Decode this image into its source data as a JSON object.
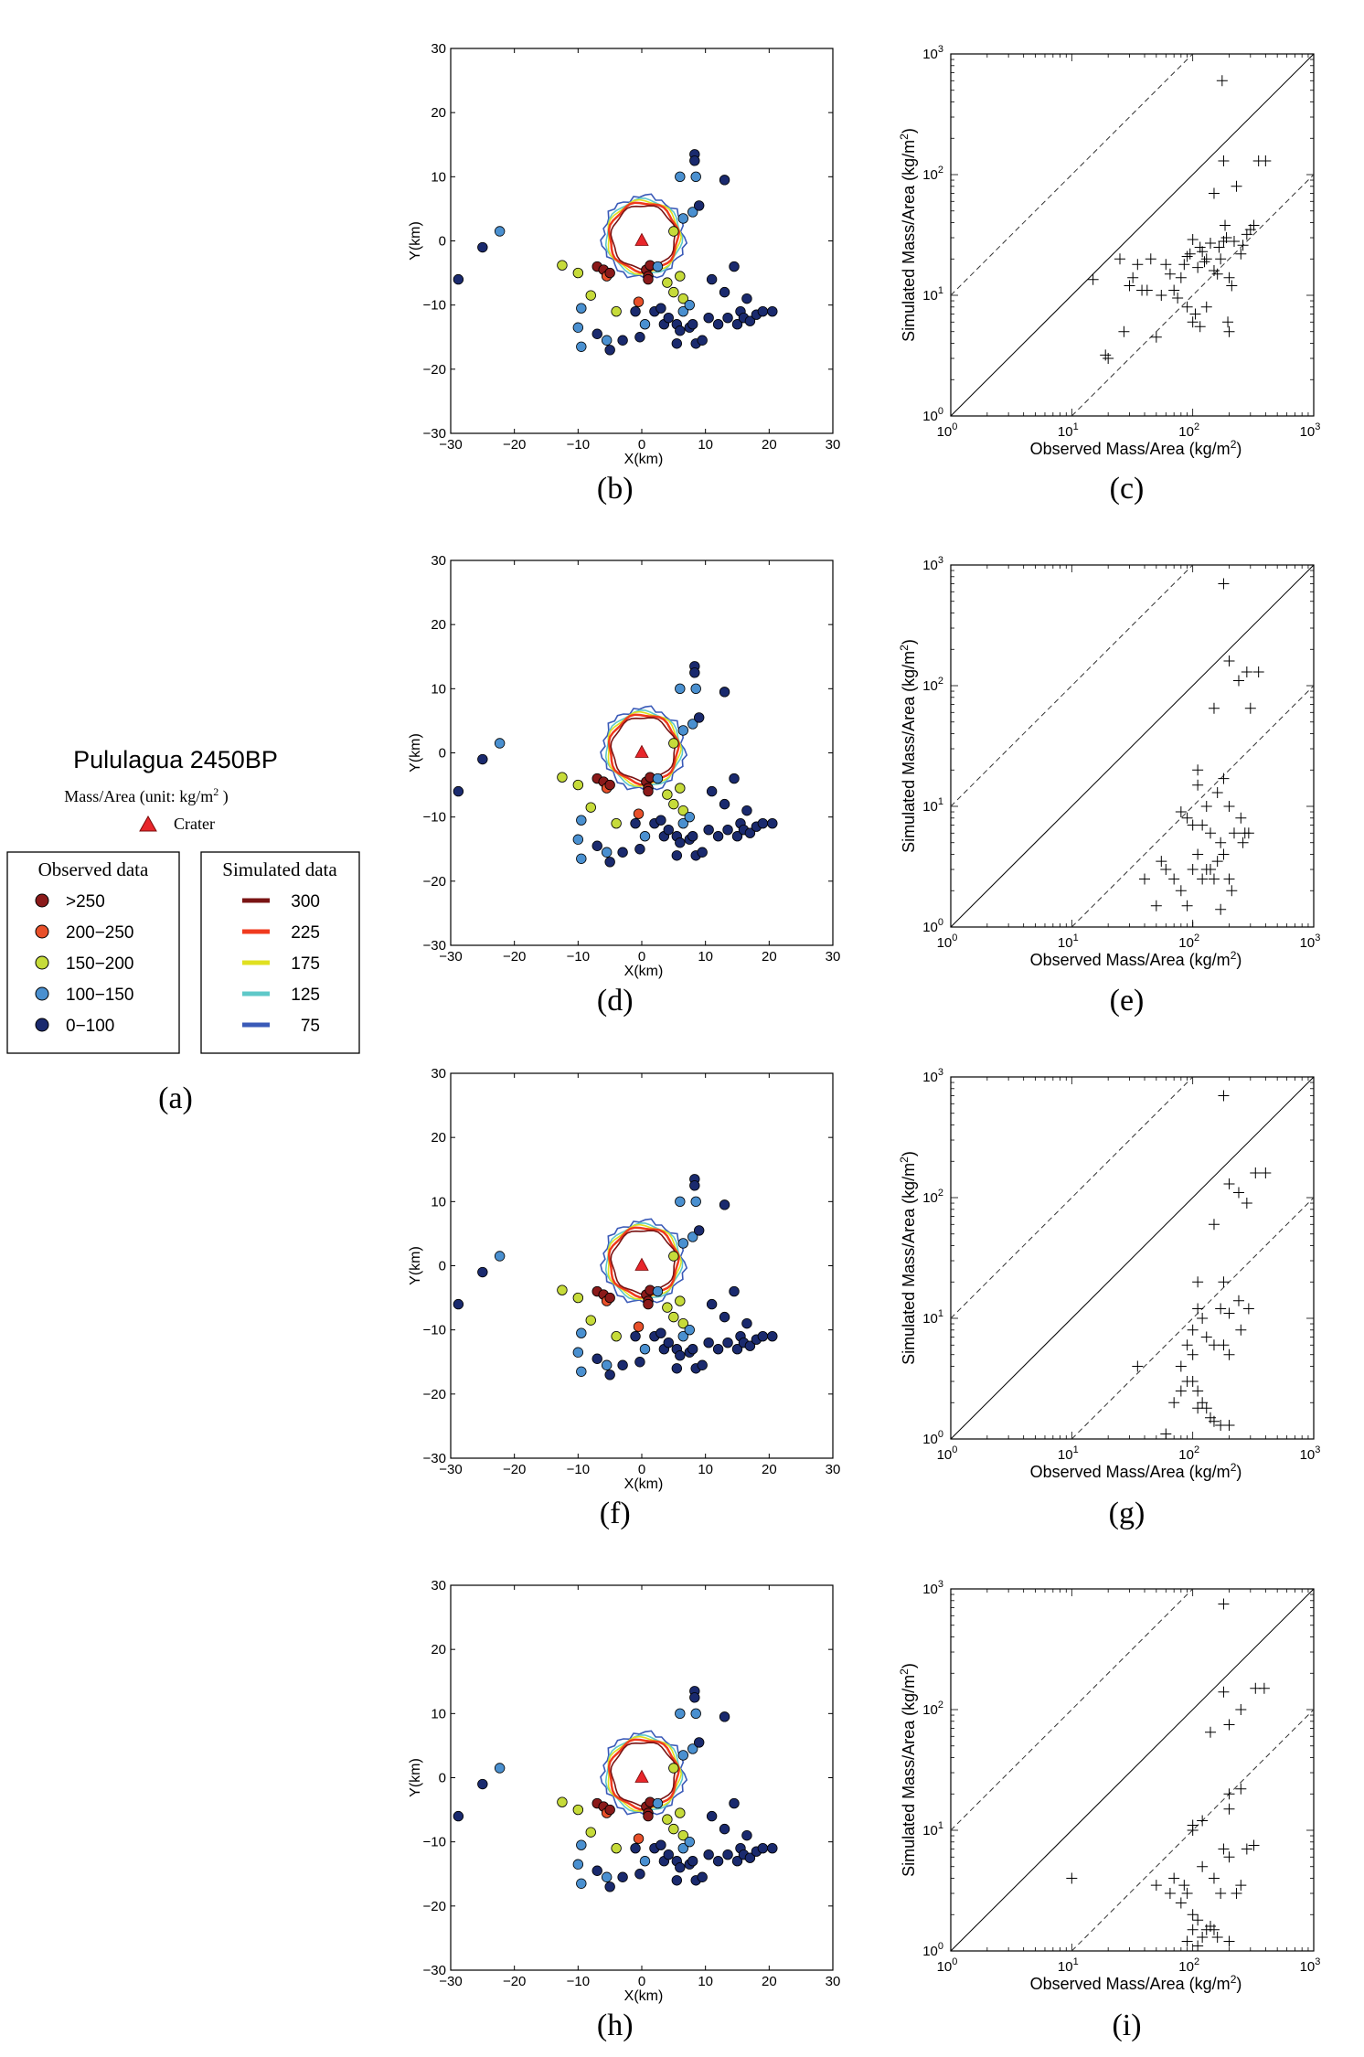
{
  "legend": {
    "title": "Pululagua 2450BP",
    "subtitle": "Mass/Area (unit: kg/m",
    "subtitle_sup": "2",
    "subtitle_end": " )",
    "crater_label": "Crater",
    "crater_color": "#e8262b",
    "observed": {
      "title": "Observed data",
      "items": [
        {
          "label": ">250",
          "color": "#8b1a1a"
        },
        {
          "label": "200−250",
          "color": "#e8502a"
        },
        {
          "label": "150−200",
          "color": "#c6db3a"
        },
        {
          "label": "100−150",
          "color": "#4a90d0"
        },
        {
          "label": "0−100",
          "color": "#1a2a6e"
        }
      ]
    },
    "simulated": {
      "title": "Simulated data",
      "items": [
        {
          "label": "300",
          "color": "#7a1414"
        },
        {
          "label": "225",
          "color": "#f03a1e"
        },
        {
          "label": "175",
          "color": "#e0e020"
        },
        {
          "label": "125",
          "color": "#5ec8c8"
        },
        {
          "label": "75",
          "color": "#3a5ab8"
        }
      ]
    },
    "panel_label": "(a)"
  },
  "chart_data": [
    {
      "type": "scatter",
      "kind": "map",
      "xlabel": "X(km)",
      "ylabel": "Y(km)",
      "xlim": [
        -30,
        30
      ],
      "ylim": [
        -30,
        30
      ],
      "xticks": [
        "−30",
        "−20",
        "−10",
        "0",
        "10",
        "20",
        "30"
      ],
      "yticks": [
        "−30",
        "−20",
        "−10",
        "0",
        "10",
        "20",
        "30"
      ],
      "crater": [
        0,
        0
      ],
      "contour_radius_km": {
        "300": 5.0,
        "225": 5.4,
        "175": 5.7,
        "125": 5.9,
        "75": 6.4
      },
      "panels": [
        "(b)",
        "(d)",
        "(f)",
        "(h)"
      ],
      "points": [
        {
          "x": -28.8,
          "y": -6,
          "c": "0-100"
        },
        {
          "x": -25,
          "y": -1,
          "c": "0-100"
        },
        {
          "x": -22.3,
          "y": 1.5,
          "c": "100-150"
        },
        {
          "x": -12.5,
          "y": -3.8,
          "c": "150-200"
        },
        {
          "x": -10,
          "y": -5,
          "c": "150-200"
        },
        {
          "x": -9.5,
          "y": -10.5,
          "c": "100-150"
        },
        {
          "x": -8,
          "y": -8.5,
          "c": "150-200"
        },
        {
          "x": -7,
          "y": -4,
          "c": ">250"
        },
        {
          "x": -6,
          "y": -4.5,
          "c": ">250"
        },
        {
          "x": -5.5,
          "y": -5.5,
          "c": "200-250"
        },
        {
          "x": -5,
          "y": -5,
          "c": ">250"
        },
        {
          "x": -10,
          "y": -13.5,
          "c": "100-150"
        },
        {
          "x": -7,
          "y": -14.5,
          "c": "0-100"
        },
        {
          "x": -9.5,
          "y": -16.5,
          "c": "100-150"
        },
        {
          "x": -5.5,
          "y": -15.5,
          "c": "100-150"
        },
        {
          "x": -5,
          "y": -17,
          "c": "0-100"
        },
        {
          "x": -4,
          "y": -11,
          "c": "150-200"
        },
        {
          "x": -3,
          "y": -15.5,
          "c": "0-100"
        },
        {
          "x": -1,
          "y": -11,
          "c": "0-100"
        },
        {
          "x": -0.5,
          "y": -9.5,
          "c": "200-250"
        },
        {
          "x": -0.3,
          "y": -15,
          "c": "0-100"
        },
        {
          "x": 0.5,
          "y": -13,
          "c": "100-150"
        },
        {
          "x": 0.7,
          "y": -4.5,
          "c": ">250"
        },
        {
          "x": 1,
          "y": -5.5,
          "c": ">250"
        },
        {
          "x": 1,
          "y": -6,
          "c": ">250"
        },
        {
          "x": 1.3,
          "y": -3.8,
          "c": ">250"
        },
        {
          "x": 2,
          "y": -11,
          "c": "0-100"
        },
        {
          "x": 2.5,
          "y": -4,
          "c": "100-150"
        },
        {
          "x": 3,
          "y": -10.5,
          "c": "0-100"
        },
        {
          "x": 3.5,
          "y": -13,
          "c": "0-100"
        },
        {
          "x": 4,
          "y": -6.5,
          "c": "150-200"
        },
        {
          "x": 4.2,
          "y": -12,
          "c": "0-100"
        },
        {
          "x": 5,
          "y": -8,
          "c": "150-200"
        },
        {
          "x": 5,
          "y": 1.5,
          "c": "150-200"
        },
        {
          "x": 5.5,
          "y": -13,
          "c": "0-100"
        },
        {
          "x": 5.5,
          "y": -16,
          "c": "0-100"
        },
        {
          "x": 6,
          "y": -5.5,
          "c": "150-200"
        },
        {
          "x": 6.5,
          "y": -9,
          "c": "150-200"
        },
        {
          "x": 6.5,
          "y": -11,
          "c": "100-150"
        },
        {
          "x": 6,
          "y": -14,
          "c": "0-100"
        },
        {
          "x": 7.5,
          "y": -10,
          "c": "100-150"
        },
        {
          "x": 7.5,
          "y": -13.5,
          "c": "0-100"
        },
        {
          "x": 6,
          "y": 10,
          "c": "100-150"
        },
        {
          "x": 6.5,
          "y": 3.5,
          "c": "100-150"
        },
        {
          "x": 8,
          "y": -13,
          "c": "0-100"
        },
        {
          "x": 8.3,
          "y": 13.5,
          "c": "0-100"
        },
        {
          "x": 8.3,
          "y": 12.5,
          "c": "0-100"
        },
        {
          "x": 8.5,
          "y": 10,
          "c": "100-150"
        },
        {
          "x": 8.5,
          "y": -16,
          "c": "0-100"
        },
        {
          "x": 8,
          "y": 4.5,
          "c": "100-150"
        },
        {
          "x": 9,
          "y": 5.5,
          "c": "0-100"
        },
        {
          "x": 9.5,
          "y": -15.5,
          "c": "0-100"
        },
        {
          "x": 10.5,
          "y": -12,
          "c": "0-100"
        },
        {
          "x": 11,
          "y": -6,
          "c": "0-100"
        },
        {
          "x": 12,
          "y": -13,
          "c": "0-100"
        },
        {
          "x": 13,
          "y": 9.5,
          "c": "0-100"
        },
        {
          "x": 13,
          "y": -8,
          "c": "0-100"
        },
        {
          "x": 13.5,
          "y": -12,
          "c": "0-100"
        },
        {
          "x": 14.5,
          "y": -4,
          "c": "0-100"
        },
        {
          "x": 15,
          "y": -13,
          "c": "0-100"
        },
        {
          "x": 15.5,
          "y": -11,
          "c": "0-100"
        },
        {
          "x": 16,
          "y": -12,
          "c": "0-100"
        },
        {
          "x": 16.5,
          "y": -9,
          "c": "0-100"
        },
        {
          "x": 17,
          "y": -12.5,
          "c": "0-100"
        },
        {
          "x": 18,
          "y": -11.5,
          "c": "0-100"
        },
        {
          "x": 19,
          "y": -11,
          "c": "0-100"
        },
        {
          "x": 20.5,
          "y": -11,
          "c": "0-100"
        }
      ]
    },
    {
      "type": "scatter",
      "kind": "loglog",
      "xlabel": "Observed Mass/Area (kg/m",
      "ylabel": "Simulated Mass/Area (kg/m",
      "label_sup": "2",
      "label_end": ")",
      "xscale": "log",
      "yscale": "log",
      "xlim": [
        1,
        1000
      ],
      "ylim": [
        1,
        1000
      ],
      "reference_lines": [
        "y=x",
        "y=10x",
        "y=x/10"
      ],
      "panels": [
        {
          "label": "(c)",
          "points": [
            [
              15,
              13.5
            ],
            [
              19,
              3.2
            ],
            [
              20,
              3
            ],
            [
              25,
              20
            ],
            [
              27,
              5
            ],
            [
              30,
              12
            ],
            [
              32,
              14
            ],
            [
              35,
              18
            ],
            [
              38,
              11
            ],
            [
              42,
              11
            ],
            [
              45,
              20
            ],
            [
              50,
              4.5
            ],
            [
              55,
              10
            ],
            [
              60,
              18
            ],
            [
              65,
              15
            ],
            [
              70,
              11
            ],
            [
              75,
              9.5
            ],
            [
              80,
              14
            ],
            [
              85,
              18
            ],
            [
              90,
              21
            ],
            [
              95,
              22
            ],
            [
              100,
              29
            ],
            [
              105,
              7
            ],
            [
              110,
              17
            ],
            [
              115,
              25
            ],
            [
              120,
              23
            ],
            [
              125,
              19
            ],
            [
              130,
              20
            ],
            [
              140,
              27
            ],
            [
              150,
              16
            ],
            [
              160,
              15
            ],
            [
              165,
              25
            ],
            [
              170,
              20
            ],
            [
              180,
              28
            ],
            [
              185,
              38
            ],
            [
              190,
              30
            ],
            [
              200,
              14
            ],
            [
              210,
              12
            ],
            [
              220,
              28
            ],
            [
              230,
              80
            ],
            [
              250,
              22
            ],
            [
              260,
              26
            ],
            [
              280,
              32
            ],
            [
              300,
              35
            ],
            [
              320,
              38
            ],
            [
              350,
              130
            ],
            [
              400,
              130
            ],
            [
              175,
              600
            ],
            [
              180,
              130
            ],
            [
              150,
              70
            ],
            [
              200,
              5
            ],
            [
              195,
              6
            ],
            [
              115,
              5.5
            ],
            [
              130,
              8
            ],
            [
              100,
              6
            ],
            [
              90,
              8
            ]
          ]
        },
        {
          "label": "(e)",
          "points": [
            [
              180,
              700
            ],
            [
              200,
              160
            ],
            [
              280,
              130
            ],
            [
              350,
              130
            ],
            [
              150,
              65
            ],
            [
              240,
              110
            ],
            [
              300,
              65
            ],
            [
              110,
              20
            ],
            [
              110,
              15
            ],
            [
              130,
              10
            ],
            [
              80,
              9
            ],
            [
              90,
              8
            ],
            [
              100,
              7
            ],
            [
              120,
              7
            ],
            [
              140,
              6
            ],
            [
              170,
              5
            ],
            [
              160,
              13
            ],
            [
              180,
              17
            ],
            [
              200,
              10
            ],
            [
              220,
              6
            ],
            [
              250,
              8
            ],
            [
              260,
              5
            ],
            [
              270,
              6
            ],
            [
              290,
              6
            ],
            [
              110,
              4
            ],
            [
              130,
              3
            ],
            [
              140,
              3
            ],
            [
              150,
              2.5
            ],
            [
              160,
              3.5
            ],
            [
              180,
              4
            ],
            [
              200,
              2.5
            ],
            [
              210,
              2
            ],
            [
              60,
              3
            ],
            [
              70,
              2.5
            ],
            [
              80,
              2
            ],
            [
              90,
              1.5
            ],
            [
              100,
              3
            ],
            [
              120,
              2.5
            ],
            [
              55,
              3.5
            ],
            [
              40,
              2.5
            ],
            [
              50,
              1.5
            ],
            [
              100,
              1
            ],
            [
              170,
              1.4
            ]
          ]
        },
        {
          "label": "(g)",
          "points": [
            [
              180,
              700
            ],
            [
              200,
              130
            ],
            [
              330,
              160
            ],
            [
              400,
              160
            ],
            [
              240,
              110
            ],
            [
              280,
              90
            ],
            [
              150,
              60
            ],
            [
              110,
              20
            ],
            [
              180,
              20
            ],
            [
              170,
              12
            ],
            [
              110,
              12
            ],
            [
              200,
              11
            ],
            [
              290,
              12
            ],
            [
              240,
              14
            ],
            [
              120,
              10
            ],
            [
              100,
              8
            ],
            [
              130,
              7
            ],
            [
              150,
              6
            ],
            [
              180,
              6
            ],
            [
              200,
              5
            ],
            [
              250,
              8
            ],
            [
              90,
              6
            ],
            [
              100,
              5
            ],
            [
              80,
              4
            ],
            [
              90,
              3
            ],
            [
              100,
              3
            ],
            [
              110,
              2.5
            ],
            [
              70,
              2
            ],
            [
              80,
              2.5
            ],
            [
              120,
              2
            ],
            [
              130,
              1.8
            ],
            [
              140,
              1.5
            ],
            [
              150,
              1.4
            ],
            [
              170,
              1.3
            ],
            [
              200,
              1.3
            ],
            [
              60,
              1.1
            ],
            [
              35,
              4
            ],
            [
              110,
              1.8
            ]
          ]
        },
        {
          "label": "(i)",
          "points": [
            [
              180,
              750
            ],
            [
              180,
              140
            ],
            [
              330,
              150
            ],
            [
              390,
              150
            ],
            [
              250,
              100
            ],
            [
              200,
              75
            ],
            [
              140,
              65
            ],
            [
              200,
              20
            ],
            [
              250,
              22
            ],
            [
              200,
              15
            ],
            [
              100,
              11
            ],
            [
              120,
              12
            ],
            [
              100,
              10
            ],
            [
              280,
              7
            ],
            [
              320,
              7.5
            ],
            [
              180,
              7
            ],
            [
              200,
              6
            ],
            [
              120,
              5
            ],
            [
              150,
              4
            ],
            [
              170,
              3
            ],
            [
              70,
              4
            ],
            [
              85,
              3.5
            ],
            [
              90,
              3
            ],
            [
              65,
              3
            ],
            [
              80,
              2.5
            ],
            [
              100,
              2
            ],
            [
              110,
              1.8
            ],
            [
              130,
              1.5
            ],
            [
              150,
              1.5
            ],
            [
              160,
              1.3
            ],
            [
              100,
              1.5
            ],
            [
              120,
              1.3
            ],
            [
              140,
              1.6
            ],
            [
              90,
              1.2
            ],
            [
              110,
              1.1
            ],
            [
              50,
              3.5
            ],
            [
              10,
              4
            ],
            [
              200,
              1.2
            ],
            [
              250,
              3.5
            ],
            [
              230,
              3
            ]
          ]
        }
      ]
    }
  ]
}
